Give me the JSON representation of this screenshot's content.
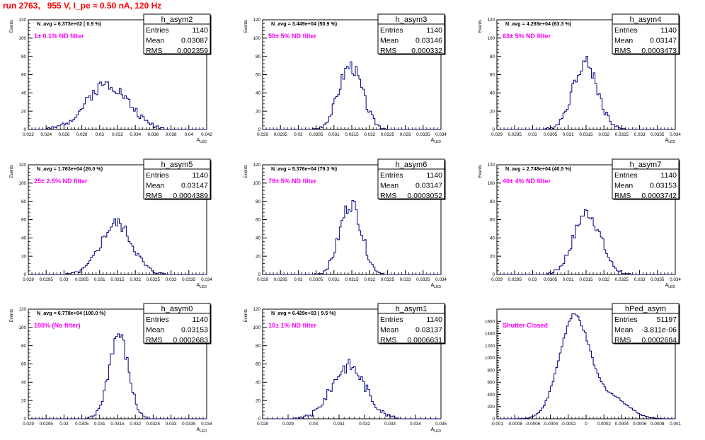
{
  "run_title": "run 2763,   955 V, I_pe ≈ 0.50 nA, 120 Hz",
  "chart_data": [
    {
      "type": "bar",
      "name": "h_asym2",
      "annotation": "N_avg = 6.373e+02 ( 0.9 %)",
      "filter_label": "1± 0.1% ND filter",
      "stats": {
        "Entries": "1140",
        "Mean": "0.03087",
        "RMS": "0.002359"
      },
      "ylabel": "Events",
      "xlabel": "A_LED",
      "xlim": [
        0.022,
        0.042
      ],
      "ylim": [
        0,
        120
      ],
      "xticks": [
        0.022,
        0.024,
        0.026,
        0.028,
        0.03,
        0.032,
        0.034,
        0.036,
        0.038,
        0.04,
        0.042
      ],
      "yticks": [
        0,
        20,
        40,
        60,
        80,
        100,
        120
      ],
      "hist": {
        "mean": 0.03087,
        "sd": 0.002359,
        "amp": 50,
        "bins": 100,
        "seed": 2
      }
    },
    {
      "type": "bar",
      "name": "h_asym3",
      "annotation": "N_avg = 3.449e+04 (50.9 %)",
      "filter_label": "50± 5% ND filter",
      "stats": {
        "Entries": "1140",
        "Mean": "0.03146",
        "RMS": "0.000332"
      },
      "ylabel": "Events",
      "xlabel": "A_LED",
      "xlim": [
        0.029,
        0.034
      ],
      "ylim": [
        0,
        120
      ],
      "xticks": [
        0.029,
        0.0295,
        0.03,
        0.0305,
        0.031,
        0.0315,
        0.032,
        0.0325,
        0.033,
        0.0335,
        0.034
      ],
      "yticks": [
        0,
        20,
        40,
        60,
        80,
        100,
        120
      ],
      "hist": {
        "mean": 0.03146,
        "sd": 0.000332,
        "amp": 70,
        "bins": 100,
        "seed": 3
      }
    },
    {
      "type": "bar",
      "name": "h_asym4",
      "annotation": "N_avg = 4.293e+04 (63.3 %)",
      "filter_label": "63± 5% ND filter",
      "stats": {
        "Entries": "1140",
        "Mean": "0.03147",
        "RMS": "0.0003473"
      },
      "ylabel": "Events",
      "xlabel": "A_LED",
      "xlim": [
        0.029,
        0.034
      ],
      "ylim": [
        0,
        120
      ],
      "xticks": [
        0.029,
        0.0295,
        0.03,
        0.0305,
        0.031,
        0.0315,
        0.032,
        0.0325,
        0.033,
        0.0335,
        0.034
      ],
      "yticks": [
        0,
        20,
        40,
        60,
        80,
        100,
        120
      ],
      "hist": {
        "mean": 0.03147,
        "sd": 0.0003473,
        "amp": 74,
        "bins": 100,
        "seed": 4
      }
    },
    {
      "type": "bar",
      "name": "h_asym5",
      "annotation": "N_avg = 1.763e+04 (26.0 %)",
      "filter_label": "25± 2.5% ND filter",
      "stats": {
        "Entries": "1140",
        "Mean": "0.03147",
        "RMS": "0.0004389"
      },
      "ylabel": "Events",
      "xlabel": "A_LED",
      "xlim": [
        0.029,
        0.034
      ],
      "ylim": [
        0,
        120
      ],
      "xticks": [
        0.029,
        0.0295,
        0.03,
        0.0305,
        0.031,
        0.0315,
        0.032,
        0.0325,
        0.033,
        0.0335,
        0.034
      ],
      "yticks": [
        0,
        20,
        40,
        60,
        80,
        100,
        120
      ],
      "hist": {
        "mean": 0.03147,
        "sd": 0.0004389,
        "amp": 56,
        "bins": 100,
        "seed": 5
      }
    },
    {
      "type": "bar",
      "name": "h_asym6",
      "annotation": "N_avg = 5.376e+04 (79.3 %)",
      "filter_label": "79± 5% ND filter",
      "stats": {
        "Entries": "1140",
        "Mean": "0.03147",
        "RMS": "0.0003052"
      },
      "ylabel": "Events",
      "xlabel": "A_LED",
      "xlim": [
        0.029,
        0.034
      ],
      "ylim": [
        0,
        120
      ],
      "xticks": [
        0.029,
        0.0295,
        0.03,
        0.0305,
        0.031,
        0.0315,
        0.032,
        0.0325,
        0.033,
        0.0335,
        0.034
      ],
      "yticks": [
        0,
        20,
        40,
        60,
        80,
        100,
        120
      ],
      "hist": {
        "mean": 0.03147,
        "sd": 0.0003052,
        "amp": 78,
        "bins": 100,
        "seed": 6
      }
    },
    {
      "type": "bar",
      "name": "h_asym7",
      "annotation": "N_avg = 2.748e+04 (40.5 %)",
      "filter_label": "40± 4% ND filter",
      "stats": {
        "Entries": "1140",
        "Mean": "0.03153",
        "RMS": "0.0003742"
      },
      "ylabel": "Events",
      "xlabel": "A_LED",
      "xlim": [
        0.029,
        0.034
      ],
      "ylim": [
        0,
        120
      ],
      "xticks": [
        0.029,
        0.0295,
        0.03,
        0.0305,
        0.031,
        0.0315,
        0.032,
        0.0325,
        0.033,
        0.0335,
        0.034
      ],
      "yticks": [
        0,
        20,
        40,
        60,
        80,
        100,
        120
      ],
      "hist": {
        "mean": 0.03153,
        "sd": 0.0003742,
        "amp": 68,
        "bins": 100,
        "seed": 7
      }
    },
    {
      "type": "bar",
      "name": "h_asym0",
      "annotation": "N_avg = 6.778e+04 (100.0 %)",
      "filter_label": "100% (No filter)",
      "stats": {
        "Entries": "1140",
        "Mean": "0.03153",
        "RMS": "0.0002683"
      },
      "ylabel": "Events",
      "xlabel": "A_LED",
      "xlim": [
        0.029,
        0.034
      ],
      "ylim": [
        0,
        120
      ],
      "xticks": [
        0.029,
        0.0295,
        0.03,
        0.0305,
        0.031,
        0.0315,
        0.032,
        0.0325,
        0.033,
        0.0335,
        0.034
      ],
      "yticks": [
        0,
        20,
        40,
        60,
        80,
        100,
        120
      ],
      "hist": {
        "mean": 0.03153,
        "sd": 0.0002683,
        "amp": 92,
        "bins": 100,
        "seed": 8
      }
    },
    {
      "type": "bar",
      "name": "h_asym1",
      "annotation": "N_avg = 6.429e+03 ( 9.5 %)",
      "filter_label": "10± 1% ND filter",
      "stats": {
        "Entries": "1140",
        "Mean": "0.03137",
        "RMS": "0.0006631"
      },
      "ylabel": "Events",
      "xlabel": "A_LED",
      "xlim": [
        0.028,
        0.035
      ],
      "ylim": [
        0,
        120
      ],
      "xticks": [
        0.028,
        0.029,
        0.03,
        0.031,
        0.032,
        0.033,
        0.034,
        0.035
      ],
      "yticks": [
        0,
        20,
        40,
        60,
        80,
        100,
        120
      ],
      "hist": {
        "mean": 0.03137,
        "sd": 0.0006631,
        "amp": 58,
        "bins": 100,
        "seed": 9
      }
    },
    {
      "type": "bar",
      "name": "hPed_asym",
      "annotation": "",
      "filter_label": "Shutter Closed",
      "stats": {
        "Entries": "51197",
        "Mean": "-3.811e-06",
        "RMS": "0.0002684"
      },
      "ylabel": "",
      "xlabel": "",
      "xlim": [
        -0.001,
        0.001
      ],
      "ylim": [
        0,
        1800
      ],
      "xticks": [
        -0.001,
        -0.0008,
        -0.0006,
        -0.0004,
        -0.0002,
        0,
        0.0002,
        0.0004,
        0.0006,
        0.0008,
        0.001
      ],
      "yticks": [
        0,
        200,
        400,
        600,
        800,
        1000,
        1200,
        1400,
        1600
      ],
      "hist": {
        "mean": -0.00013,
        "sd": 0.00017,
        "amp": 1680,
        "bins": 100,
        "seed": 10,
        "tail": {
          "mean": 0.0003,
          "sd": 0.00018,
          "amp": 330
        }
      }
    }
  ]
}
